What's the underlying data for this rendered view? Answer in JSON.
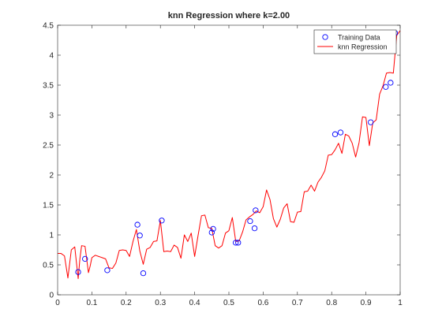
{
  "chart_data": {
    "type": "line",
    "title": "knn Regression where k=2.00",
    "xlabel": "",
    "ylabel": "",
    "xlim": [
      0,
      1
    ],
    "ylim": [
      0,
      4.5
    ],
    "x_ticks": [
      0,
      0.1,
      0.2,
      0.3,
      0.4,
      0.5,
      0.6,
      0.7,
      0.8,
      0.9,
      1
    ],
    "x_tick_labels": [
      "0",
      "0.1",
      "0.2",
      "0.3",
      "0.4",
      "0.5",
      "0.6",
      "0.7",
      "0.8",
      "0.9",
      "1"
    ],
    "y_ticks": [
      0,
      0.5,
      1,
      1.5,
      2,
      2.5,
      3,
      3.5,
      4,
      4.5
    ],
    "y_tick_labels": [
      "0",
      "0.5",
      "1",
      "1.5",
      "2",
      "2.5",
      "3",
      "3.5",
      "4",
      "4.5"
    ],
    "grid": false,
    "legend_position": "top-right",
    "legend": [
      {
        "label": "Training Data",
        "marker": "circle",
        "color": "#0000ff"
      },
      {
        "label": "knn Regression",
        "marker": "line",
        "color": "#ff0000"
      }
    ],
    "series": [
      {
        "name": "Training Data",
        "kind": "scatter",
        "color": "#0000ff",
        "x": [
          0.06,
          0.08,
          0.145,
          0.233,
          0.24,
          0.25,
          0.304,
          0.45,
          0.454,
          0.52,
          0.527,
          0.562,
          0.575,
          0.578,
          0.81,
          0.826,
          0.914,
          0.958,
          0.972,
          0.985
        ],
        "y": [
          0.38,
          0.6,
          0.41,
          1.17,
          0.99,
          0.36,
          1.24,
          1.04,
          1.1,
          0.87,
          0.87,
          1.23,
          1.11,
          1.41,
          2.68,
          2.71,
          2.88,
          3.47,
          3.54,
          4.37
        ]
      },
      {
        "name": "knn Regression",
        "kind": "line",
        "color": "#ff0000",
        "x": [
          0.0,
          0.01,
          0.02,
          0.03,
          0.04,
          0.05,
          0.06,
          0.065,
          0.07,
          0.08,
          0.09,
          0.095,
          0.1,
          0.11,
          0.12,
          0.13,
          0.14,
          0.15,
          0.16,
          0.17,
          0.18,
          0.19,
          0.2,
          0.21,
          0.22,
          0.23,
          0.24,
          0.25,
          0.26,
          0.27,
          0.28,
          0.29,
          0.3,
          0.31,
          0.32,
          0.33,
          0.34,
          0.35,
          0.36,
          0.37,
          0.38,
          0.39,
          0.4,
          0.41,
          0.42,
          0.43,
          0.44,
          0.45,
          0.46,
          0.47,
          0.48,
          0.49,
          0.5,
          0.51,
          0.52,
          0.53,
          0.54,
          0.55,
          0.56,
          0.57,
          0.58,
          0.59,
          0.6,
          0.61,
          0.62,
          0.63,
          0.64,
          0.65,
          0.66,
          0.67,
          0.68,
          0.69,
          0.7,
          0.71,
          0.72,
          0.73,
          0.74,
          0.75,
          0.76,
          0.77,
          0.78,
          0.79,
          0.8,
          0.81,
          0.82,
          0.83,
          0.84,
          0.85,
          0.86,
          0.87,
          0.88,
          0.89,
          0.9,
          0.91,
          0.92,
          0.93,
          0.94,
          0.95,
          0.96,
          0.97,
          0.98,
          0.99,
          1.0
        ],
        "y": [
          0.69,
          0.69,
          0.65,
          0.28,
          0.75,
          0.8,
          0.27,
          0.6,
          0.82,
          0.81,
          0.37,
          0.48,
          0.62,
          0.66,
          0.64,
          0.62,
          0.6,
          0.45,
          0.44,
          0.53,
          0.74,
          0.75,
          0.74,
          0.64,
          0.89,
          1.09,
          0.73,
          0.51,
          0.76,
          0.79,
          0.89,
          0.9,
          1.24,
          0.72,
          0.73,
          0.72,
          0.83,
          0.79,
          0.61,
          1.0,
          0.89,
          1.03,
          0.64,
          0.99,
          1.32,
          1.33,
          1.12,
          1.11,
          0.82,
          0.78,
          0.82,
          1.03,
          1.07,
          1.29,
          0.89,
          0.9,
          1.05,
          1.25,
          1.3,
          1.34,
          1.4,
          1.37,
          1.47,
          1.75,
          1.59,
          1.27,
          1.13,
          1.26,
          1.45,
          1.52,
          1.22,
          1.21,
          1.38,
          1.39,
          1.72,
          1.73,
          1.83,
          1.73,
          1.88,
          1.96,
          2.07,
          2.33,
          2.34,
          2.42,
          2.53,
          2.36,
          2.68,
          2.65,
          2.53,
          2.3,
          2.54,
          2.97,
          2.96,
          2.49,
          2.87,
          2.92,
          3.35,
          3.49,
          3.7,
          3.71,
          3.7,
          4.33,
          4.41
        ]
      }
    ]
  }
}
